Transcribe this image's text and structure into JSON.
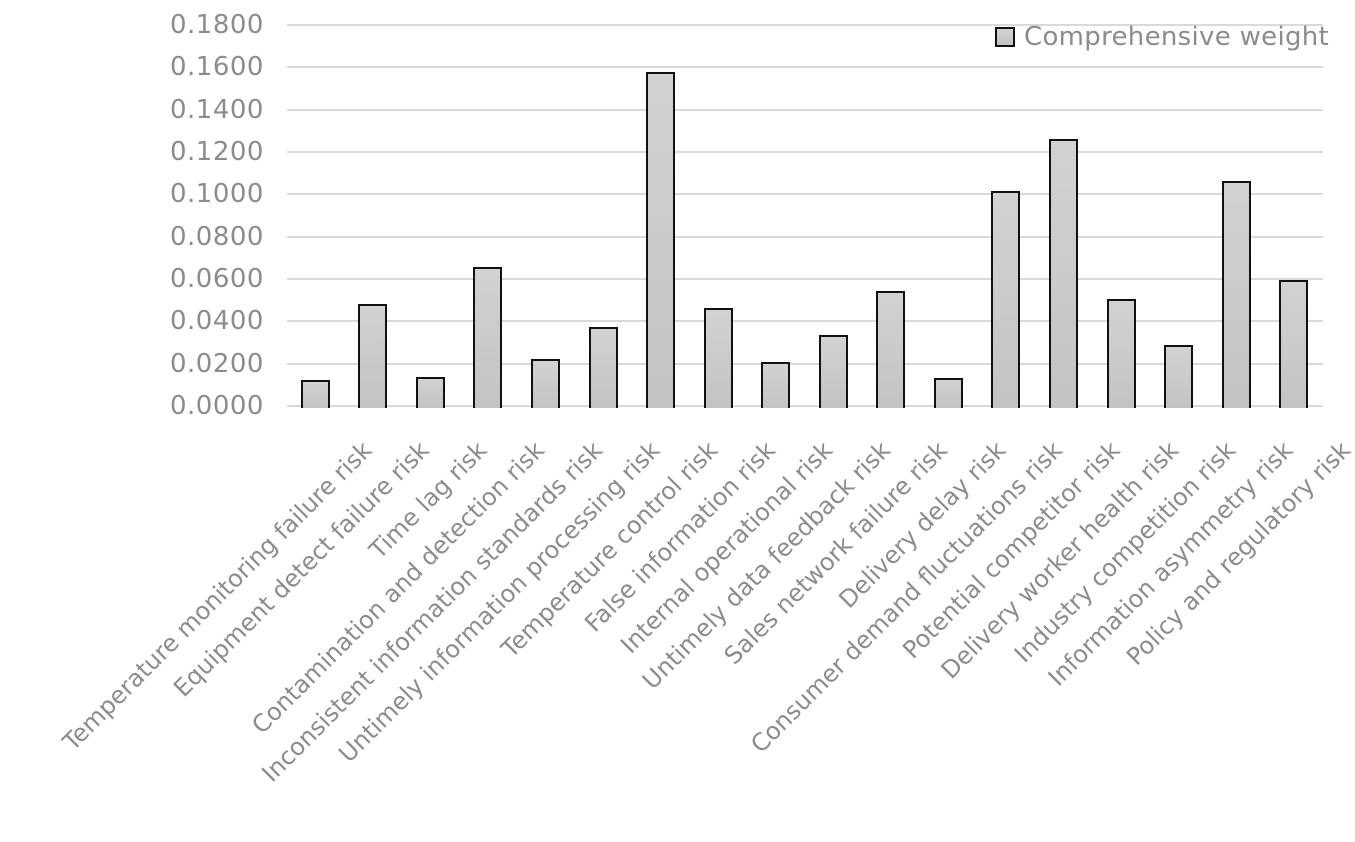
{
  "chart_data": {
    "type": "bar",
    "title": "",
    "xlabel": "",
    "ylabel": "",
    "ylim": [
      0,
      0.18
    ],
    "yticks": [
      "0.0000",
      "0.0200",
      "0.0400",
      "0.0600",
      "0.0800",
      "0.1000",
      "0.1200",
      "0.1400",
      "0.1600",
      "0.1800"
    ],
    "grid": true,
    "legend_position": "top-right",
    "categories": [
      "Temperature monitoring failure risk",
      "Equipment detect failure risk",
      "Time lag risk",
      "Contamination and detection risk",
      "Inconsistent information standards risk",
      "Untimely information processing risk",
      "Temperature control risk",
      "False information risk",
      "Internal operational risk",
      "Untimely data feedback risk",
      "Sales network failure risk",
      "Delivery delay risk",
      "Consumer demand fluctuations risk",
      "Potential competitor risk",
      "Delivery worker health risk",
      "Industry competition risk",
      "Information asymmetry risk",
      "Policy and regulatory risk"
    ],
    "series": [
      {
        "name": "Comprehensive weight",
        "values": [
          0.0123,
          0.048,
          0.0137,
          0.0656,
          0.0221,
          0.0375,
          0.1576,
          0.0462,
          0.021,
          0.0336,
          0.0544,
          0.0131,
          0.1017,
          0.1262,
          0.0506,
          0.029,
          0.1062,
          0.0597
        ]
      }
    ]
  },
  "legend": {
    "label": "Comprehensive weight"
  }
}
